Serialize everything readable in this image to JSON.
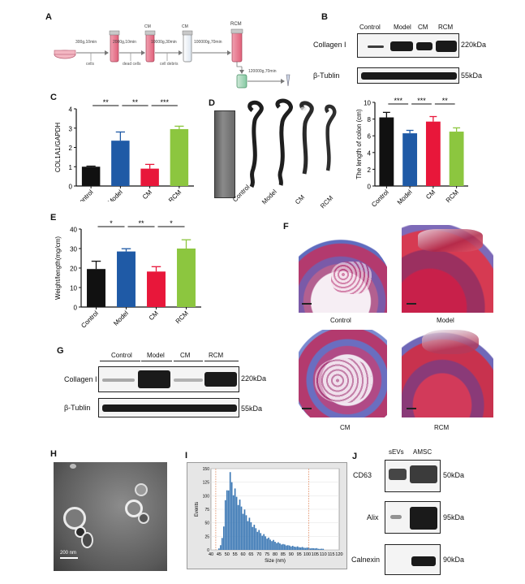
{
  "panels": {
    "A": {
      "label": "A",
      "steps": [
        "300g,10min",
        "2000g,10min",
        "10000g,30min",
        "100000g,70min",
        "120000g,70min"
      ],
      "removed": [
        "cells",
        "dead cells",
        "cell debris"
      ],
      "tubes": [
        "CM",
        "CM",
        "RCM"
      ]
    },
    "B": {
      "label": "B",
      "lanes": [
        "Control",
        "Model",
        "CM",
        "RCM"
      ],
      "rows": [
        {
          "name": "Collagen I",
          "size": "220kDa"
        },
        {
          "name": "β-Tublin",
          "size": "55kDa"
        }
      ]
    },
    "C": {
      "label": "C"
    },
    "D": {
      "label": "D",
      "photo_labels": [
        "Control",
        "Model",
        "CM",
        "RCM"
      ]
    },
    "E": {
      "label": "E"
    },
    "F": {
      "label": "F",
      "captions": [
        "Control",
        "Model",
        "CM",
        "RCM"
      ]
    },
    "G": {
      "label": "G",
      "groups": [
        "Control",
        "Model",
        "CM",
        "RCM"
      ],
      "rows": [
        {
          "name": "Collagen I",
          "size": "220kDa"
        },
        {
          "name": "β-Tublin",
          "size": "55kDa"
        }
      ]
    },
    "H": {
      "label": "H",
      "scale": "200 nm"
    },
    "I": {
      "label": "I"
    },
    "J": {
      "label": "J",
      "lanes": [
        "sEVs",
        "AMSC"
      ],
      "rows": [
        {
          "name": "CD63",
          "size": "50kDa"
        },
        {
          "name": "Alix",
          "size": "95kDa"
        },
        {
          "name": "Calnexin",
          "size": "90kDa"
        }
      ]
    }
  },
  "chart_data": [
    {
      "id": "C",
      "type": "bar",
      "categories": [
        "Control",
        "Model",
        "CM",
        "RCM"
      ],
      "values": [
        1.0,
        2.35,
        0.9,
        2.95
      ],
      "errors": [
        0.03,
        0.45,
        0.22,
        0.15
      ],
      "colors": [
        "#111111",
        "#1f5aa6",
        "#e8173a",
        "#8cc63f"
      ],
      "ylabel": "COL1A1/GAPDH",
      "ylim": [
        0,
        4
      ],
      "yticks": [
        0,
        1,
        2,
        3,
        4
      ],
      "significance": [
        {
          "from": 0,
          "to": 1,
          "label": "**"
        },
        {
          "from": 1,
          "to": 2,
          "label": "**"
        },
        {
          "from": 2,
          "to": 3,
          "label": "***"
        }
      ]
    },
    {
      "id": "D",
      "type": "bar",
      "categories": [
        "Control",
        "Model",
        "CM",
        "RCM"
      ],
      "values": [
        8.2,
        6.3,
        7.7,
        6.5
      ],
      "errors": [
        0.6,
        0.35,
        0.6,
        0.45
      ],
      "colors": [
        "#111111",
        "#1f5aa6",
        "#e8173a",
        "#8cc63f"
      ],
      "ylabel": "The length of colon (cm)",
      "ylim": [
        0,
        10
      ],
      "yticks": [
        0,
        2,
        4,
        6,
        8,
        10
      ],
      "significance": [
        {
          "from": 0,
          "to": 1,
          "label": "***"
        },
        {
          "from": 1,
          "to": 2,
          "label": "***"
        },
        {
          "from": 2,
          "to": 3,
          "label": "**"
        }
      ]
    },
    {
      "id": "E",
      "type": "bar",
      "categories": [
        "Control",
        "Model",
        "CM",
        "RCM"
      ],
      "values": [
        19.5,
        28.5,
        18.2,
        30.0
      ],
      "errors": [
        4.0,
        1.4,
        2.5,
        4.5
      ],
      "colors": [
        "#111111",
        "#1f5aa6",
        "#e8173a",
        "#8cc63f"
      ],
      "ylabel": "Weight/length(mg/cm)",
      "ylim": [
        0,
        40
      ],
      "yticks": [
        0,
        10,
        20,
        30,
        40
      ],
      "significance": [
        {
          "from": 0,
          "to": 1,
          "label": "*"
        },
        {
          "from": 1,
          "to": 2,
          "label": "**"
        },
        {
          "from": 2,
          "to": 3,
          "label": "*"
        }
      ]
    },
    {
      "id": "I",
      "type": "bar",
      "xlabel": "Size (nm)",
      "ylabel": "Events",
      "xlim": [
        40,
        120
      ],
      "ylim": [
        0,
        150
      ],
      "xticks": [
        40,
        45,
        50,
        55,
        60,
        65,
        70,
        75,
        80,
        85,
        90,
        95,
        100,
        105,
        110,
        115,
        120
      ],
      "yticks": [
        0,
        25,
        50,
        75,
        100,
        125,
        150
      ],
      "bin_width": 0.5,
      "bins": [
        [
          45,
          3
        ],
        [
          46,
          8
        ],
        [
          47,
          22
        ],
        [
          48,
          48
        ],
        [
          49,
          85
        ],
        [
          50,
          110
        ],
        [
          51,
          122
        ],
        [
          52,
          133
        ],
        [
          53,
          125
        ],
        [
          54,
          112
        ],
        [
          55,
          105
        ],
        [
          56,
          98
        ],
        [
          57,
          92
        ],
        [
          58,
          86
        ],
        [
          59,
          80
        ],
        [
          60,
          74
        ],
        [
          61,
          69
        ],
        [
          62,
          64
        ],
        [
          63,
          59
        ],
        [
          64,
          55
        ],
        [
          65,
          51
        ],
        [
          66,
          47
        ],
        [
          67,
          43
        ],
        [
          68,
          40
        ],
        [
          69,
          37
        ],
        [
          70,
          34
        ],
        [
          71,
          31
        ],
        [
          72,
          29
        ],
        [
          73,
          27
        ],
        [
          74,
          25
        ],
        [
          75,
          23
        ],
        [
          76,
          21
        ],
        [
          77,
          19
        ],
        [
          78,
          18
        ],
        [
          79,
          17
        ],
        [
          80,
          15
        ],
        [
          81,
          14
        ],
        [
          82,
          13
        ],
        [
          83,
          12
        ],
        [
          84,
          11
        ],
        [
          85,
          10
        ],
        [
          86,
          10
        ],
        [
          87,
          9
        ],
        [
          88,
          8
        ],
        [
          89,
          8
        ],
        [
          90,
          7
        ],
        [
          91,
          7
        ],
        [
          92,
          6
        ],
        [
          93,
          6
        ],
        [
          94,
          6
        ],
        [
          95,
          5
        ],
        [
          96,
          5
        ],
        [
          97,
          5
        ],
        [
          98,
          4
        ],
        [
          99,
          4
        ],
        [
          100,
          4
        ],
        [
          101,
          4
        ],
        [
          102,
          3
        ],
        [
          103,
          3
        ],
        [
          104,
          3
        ],
        [
          105,
          3
        ],
        [
          106,
          3
        ],
        [
          107,
          2
        ],
        [
          108,
          2
        ],
        [
          109,
          2
        ],
        [
          110,
          2
        ]
      ],
      "markers": [
        43,
        101
      ],
      "color": "#3d79b5"
    }
  ]
}
